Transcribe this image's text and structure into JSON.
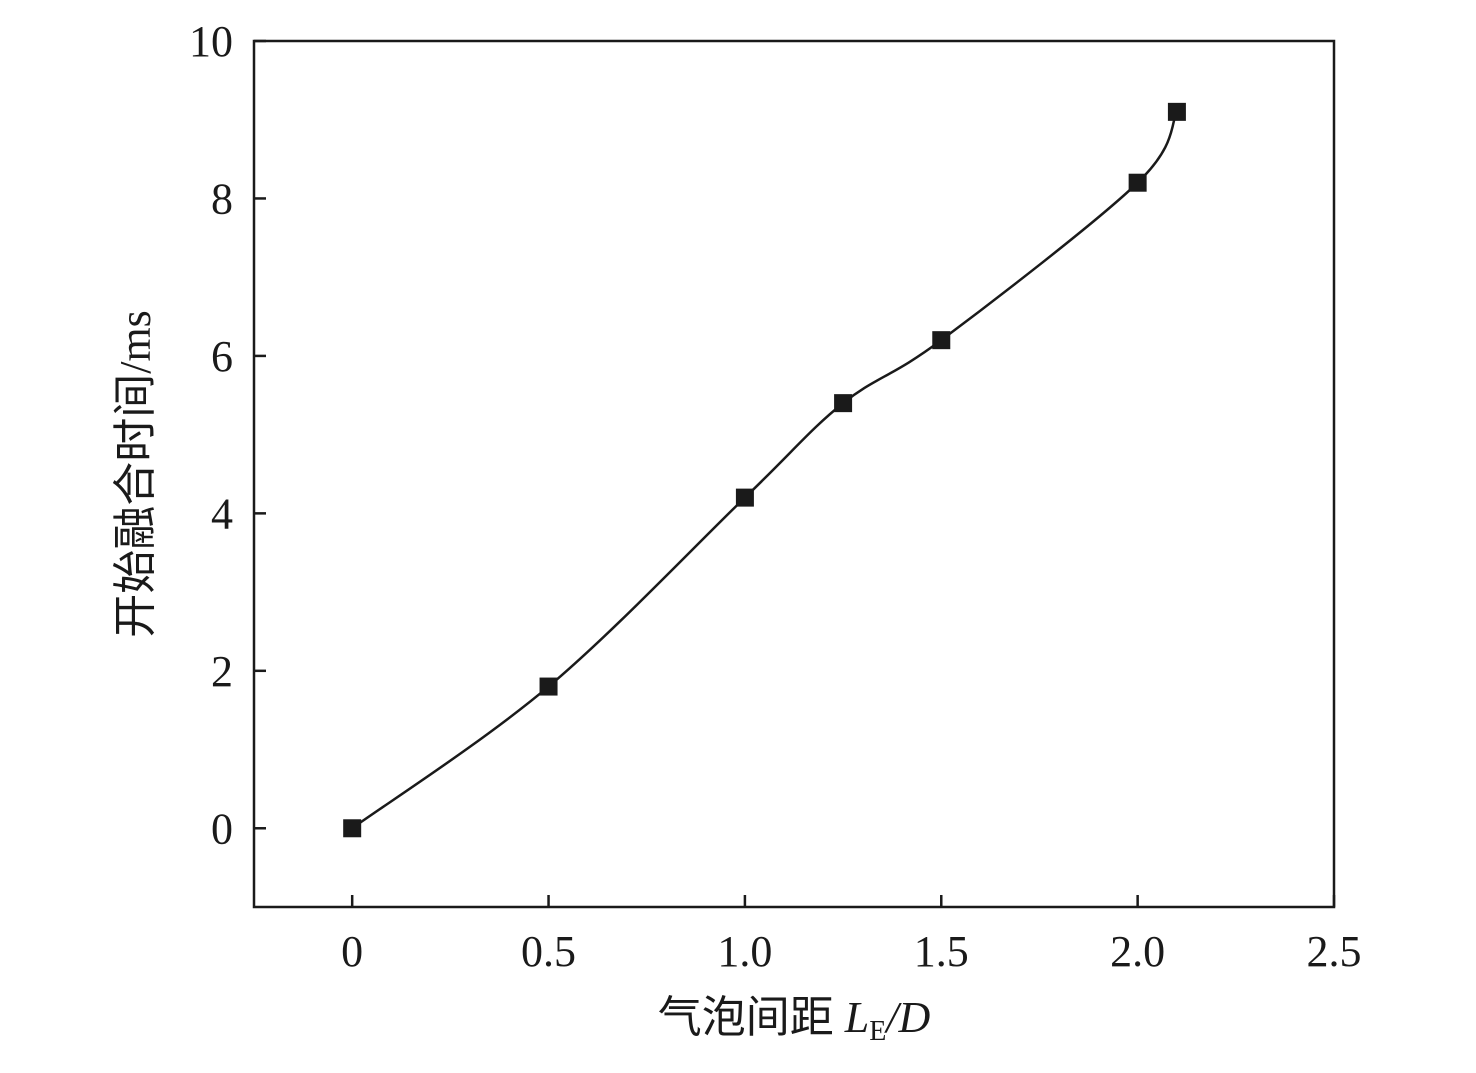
{
  "chart_data": {
    "type": "line",
    "markers": "square",
    "line_style": "smooth",
    "x": [
      0,
      0.5,
      1.0,
      1.25,
      1.5,
      2.0,
      2.1
    ],
    "series": [
      {
        "values": [
          0,
          1.8,
          4.2,
          5.4,
          6.2,
          8.2,
          9.1
        ]
      }
    ],
    "xlim": [
      -0.25,
      2.5
    ],
    "ylim": [
      -1,
      10
    ],
    "xticks": [
      "0",
      "0.5",
      "1.0",
      "1.5",
      "2.0",
      "2.5"
    ],
    "xtick_values": [
      0,
      0.5,
      1.0,
      1.5,
      2.0,
      2.5
    ],
    "yticks": [
      "0",
      "2",
      "4",
      "6",
      "8",
      "10"
    ],
    "ytick_values": [
      0,
      2,
      4,
      6,
      8,
      10
    ],
    "xlabel": {
      "prefix": "气泡间距 ",
      "var": "L",
      "subscript": "E",
      "suffix": "/D"
    },
    "ylabel": "开始融合时间/ms",
    "grid": false,
    "colors": {
      "line": "#1a1a1a",
      "marker": "#1a1a1a",
      "axes": "#1a1a1a"
    }
  }
}
